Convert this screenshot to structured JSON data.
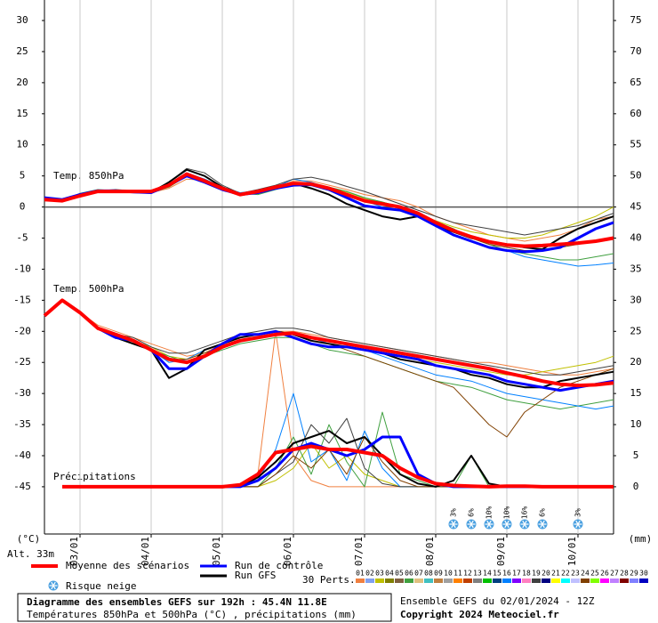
{
  "chart_data": {
    "type": "line",
    "title": "Diagramme des ensembles GEFS sur 192h : 45.4N 11.8E",
    "subtitle": "Températures 850hPa et 500hPa (°C) , précipitations (mm)",
    "run_info": "Ensemble GEFS du 02/01/2024 - 12Z",
    "copyright": "Copyright 2024 Meteociel.fr",
    "altitude": "Alt. 33m",
    "ylabel": "(°C)",
    "y2label": "(mm)",
    "panel_labels": [
      "Temp. 850hPa",
      "Temp. 500hPa",
      "Précipitations"
    ],
    "x": [
      0,
      6,
      12,
      18,
      24,
      30,
      36,
      42,
      48,
      54,
      60,
      66,
      72,
      78,
      84,
      90,
      96,
      102,
      108,
      114,
      120,
      126,
      132,
      138,
      144,
      150,
      156,
      162,
      168,
      174,
      180,
      186,
      192
    ],
    "xlim": [
      0,
      192
    ],
    "xticks": [
      {
        "value": 12,
        "label": "03/01"
      },
      {
        "value": 36,
        "label": "04/01"
      },
      {
        "value": 60,
        "label": "05/01"
      },
      {
        "value": 84,
        "label": "06/01"
      },
      {
        "value": 108,
        "label": "07/01"
      },
      {
        "value": 132,
        "label": "08/01"
      },
      {
        "value": 156,
        "label": "09/01"
      },
      {
        "value": 180,
        "label": "10/01"
      }
    ],
    "ylim": [
      -52.6,
      33.3
    ],
    "yticks": [
      30,
      25,
      20,
      15,
      10,
      5,
      0,
      -5,
      -10,
      -15,
      -20,
      -25,
      -30,
      -35,
      -40,
      -45
    ],
    "y2lim": [
      -7.6,
      78.3
    ],
    "y2ticks": [
      75,
      70,
      65,
      60,
      55,
      50,
      45,
      40,
      35,
      30,
      25,
      20,
      15,
      10,
      5,
      0
    ],
    "series": [
      {
        "name": "Moyenne des scénarios",
        "color": "#ff0000",
        "t850": [
          1.2,
          1,
          1.8,
          2.5,
          2.5,
          2.5,
          2.5,
          3.5,
          5.3,
          4.2,
          3,
          2,
          2.5,
          3.2,
          3.8,
          3.7,
          3,
          2,
          1,
          0.5,
          0,
          -1,
          -2.5,
          -3.8,
          -4.8,
          -5.6,
          -6.1,
          -6.3,
          -6.2,
          -6,
          -5.8,
          -5.5,
          -5
        ],
        "t500": [
          -17.5,
          -15,
          -17,
          -19.5,
          -20.5,
          -21.5,
          -23,
          -24.5,
          -25,
          -24,
          -22.5,
          -21.5,
          -21,
          -20.5,
          -20.3,
          -21,
          -21.5,
          -22,
          -22.5,
          -23,
          -23.5,
          -24,
          -24.5,
          -25,
          -25.5,
          -26,
          -26.7,
          -27.3,
          -28,
          -28.5,
          -28.7,
          -28.6,
          -28.3
        ],
        "precip": [
          null,
          0,
          0,
          0,
          0,
          0,
          0,
          0,
          0,
          0,
          0,
          0.3,
          2,
          5.5,
          6,
          6.5,
          6,
          6,
          5.5,
          5,
          3,
          1.5,
          0.5,
          0.2,
          0.1,
          0,
          0.1,
          0.1,
          0,
          0,
          0,
          0,
          0
        ]
      },
      {
        "name": "Run de contrôle",
        "color": "#0000ff",
        "t850": [
          1.5,
          1.2,
          2,
          2.6,
          2.6,
          2.4,
          2.3,
          3.5,
          5,
          4,
          2.8,
          2,
          2.3,
          3,
          3.5,
          3.6,
          2.8,
          1.5,
          0.2,
          -0.2,
          -0.5,
          -1.5,
          -3,
          -4.5,
          -5.5,
          -6.5,
          -7,
          -7.2,
          -7,
          -6.5,
          -5,
          -3.5,
          -2.5
        ],
        "t500": [
          -17.5,
          -15,
          -17,
          -19.5,
          -21,
          -21.5,
          -23,
          -26,
          -26,
          -24,
          -22,
          -20.5,
          -20.5,
          -20,
          -21,
          -22,
          -22.5,
          -22.5,
          -23,
          -23.5,
          -24,
          -24.5,
          -25.5,
          -26,
          -26.5,
          -27,
          -28,
          -28.5,
          -29,
          -29.5,
          -29,
          -28.5,
          -28
        ],
        "precip": [
          null,
          0,
          0,
          0,
          0,
          0,
          0,
          0,
          0,
          0,
          0,
          0,
          1,
          3,
          6,
          7,
          6,
          5,
          6,
          8,
          8,
          2,
          0.5,
          0,
          0,
          0,
          0,
          0,
          0,
          0,
          0,
          0,
          0
        ]
      },
      {
        "name": "Run GFS",
        "color": "#000000",
        "t850": [
          1.5,
          1.2,
          2,
          2.6,
          2.6,
          2.5,
          2.3,
          4,
          6,
          5,
          3.2,
          2,
          2.5,
          3.3,
          3.8,
          3,
          2,
          0.5,
          -0.5,
          -1.5,
          -2,
          -1.5,
          -3,
          -4,
          -5,
          -5.5,
          -6,
          -6.5,
          -6.8,
          -5,
          -3.5,
          -2.5,
          -1.5
        ],
        "t500": [
          -17.5,
          -15,
          -17,
          -19.5,
          -21,
          -22,
          -23,
          -27.5,
          -26,
          -23,
          -22,
          -21,
          -20.5,
          -20,
          -20.5,
          -21.5,
          -22,
          -22.5,
          -23,
          -23.5,
          -24.5,
          -25,
          -25.5,
          -26,
          -27,
          -27.5,
          -28.5,
          -29,
          -29,
          -28,
          -27.5,
          -27,
          -26.5
        ],
        "precip": [
          null,
          0,
          0,
          0,
          0,
          0,
          0,
          0,
          0,
          0,
          0,
          0,
          1.5,
          4,
          7,
          8,
          9,
          7,
          8,
          5,
          2,
          0.5,
          0,
          1,
          5,
          0.5,
          0,
          0,
          0,
          0,
          0,
          0,
          0
        ]
      }
    ],
    "perturbations": {
      "label": "30 Perts.",
      "members": [
        {
          "name": "01",
          "color": "#f08040",
          "t850": [
            1,
            1,
            2,
            2.5,
            2.5,
            2.5,
            2.3,
            3,
            4.5,
            4.3,
            3,
            1.8,
            2.5,
            3.2,
            4.2,
            4.2,
            3.5,
            2.8,
            2,
            1.5,
            1,
            0,
            -1.5,
            -2.5,
            -3.5,
            -4.5,
            -5,
            -5.5,
            -5,
            -4.5,
            -3.5,
            -2,
            -1.5
          ],
          "t500": [
            -17.5,
            -15,
            -17,
            -19,
            -20,
            -21,
            -22,
            -23,
            -24,
            -23.5,
            -22,
            -21,
            -20.5,
            -20,
            -20,
            -20.5,
            -21,
            -21.5,
            -22,
            -22.5,
            -23,
            -23.5,
            -24,
            -24.5,
            -25,
            -25,
            -25.5,
            -26,
            -26.5,
            -27,
            -27,
            -26.5,
            -26
          ],
          "precip": [
            null,
            0,
            0,
            0,
            0,
            0,
            0,
            0,
            0,
            0,
            0,
            0,
            2,
            25,
            5,
            1,
            0,
            0,
            0,
            0,
            0,
            0,
            0,
            0,
            0,
            0,
            0,
            0,
            0,
            0,
            0,
            0,
            0
          ]
        },
        {
          "name": "02",
          "color": "#80a0f0"
        },
        {
          "name": "03",
          "color": "#c0c000",
          "t850": [
            1.3,
            1.1,
            2,
            2.5,
            2.5,
            2.5,
            2.4,
            3.2,
            5,
            4.2,
            3,
            2,
            2.5,
            3,
            3.8,
            3.8,
            3.2,
            2.4,
            1.4,
            0.8,
            0,
            -1,
            -2.2,
            -3.2,
            -4,
            -4.5,
            -5,
            -5,
            -4.5,
            -3.5,
            -2.5,
            -1.5,
            0
          ],
          "t500": [
            -17.5,
            -15,
            -17,
            -19.5,
            -20.5,
            -21.5,
            -22.5,
            -24,
            -24.5,
            -23.5,
            -22.5,
            -21.5,
            -21,
            -20.5,
            -20.5,
            -21,
            -22,
            -22.5,
            -23,
            -23.5,
            -24,
            -24.5,
            -25,
            -25.5,
            -26,
            -26.5,
            -27,
            -27,
            -26.5,
            -26,
            -25.5,
            -25,
            -24
          ],
          "precip": [
            null,
            0,
            0,
            0,
            0,
            0,
            0,
            0,
            0,
            0,
            0,
            0,
            0,
            1,
            3,
            7,
            3,
            5,
            2,
            1,
            0,
            0,
            0,
            0,
            0,
            0,
            0,
            0,
            0,
            0,
            0,
            0,
            0
          ]
        },
        {
          "name": "04",
          "color": "#808000"
        },
        {
          "name": "05",
          "color": "#806040"
        },
        {
          "name": "06",
          "color": "#40a040",
          "t850": [
            1.3,
            1,
            2.2,
            2.8,
            2.6,
            2.4,
            2.3,
            3.2,
            5,
            4.5,
            3.2,
            2.2,
            2,
            2.8,
            3.6,
            3.8,
            3.2,
            2.5,
            1.5,
            0.8,
            0,
            -1,
            -2.3,
            -3.5,
            -5,
            -6,
            -7,
            -7.5,
            -8,
            -8.5,
            -8.5,
            -8,
            -7.5
          ],
          "t500": [
            -17.5,
            -15,
            -17,
            -19.5,
            -20.5,
            -21.5,
            -23,
            -24,
            -25,
            -24,
            -23,
            -22,
            -21.5,
            -21,
            -21,
            -22,
            -23,
            -23.5,
            -24,
            -25,
            -26,
            -27,
            -28,
            -28.5,
            -29,
            -30,
            -31,
            -31.5,
            -32,
            -32.5,
            -32,
            -31.5,
            -31
          ],
          "precip": [
            null,
            0,
            0,
            0,
            0,
            0,
            0,
            0,
            0,
            0,
            0,
            0,
            0,
            3,
            8,
            2,
            10,
            4,
            0,
            12,
            2,
            1,
            0,
            0,
            5,
            0,
            0,
            0,
            0,
            0,
            0,
            0,
            0
          ]
        },
        {
          "name": "07",
          "color": "#e0c080"
        },
        {
          "name": "08",
          "color": "#40c0c0"
        },
        {
          "name": "09",
          "color": "#c08040"
        },
        {
          "name": "10",
          "color": "#a0a0a0"
        },
        {
          "name": "11",
          "color": "#ff8000"
        },
        {
          "name": "12",
          "color": "#c04000"
        },
        {
          "name": "13",
          "color": "#808080"
        },
        {
          "name": "14",
          "color": "#00c000"
        },
        {
          "name": "15",
          "color": "#004080"
        },
        {
          "name": "16",
          "color": "#0080ff",
          "t850": [
            1.2,
            1,
            1.8,
            2.4,
            2.4,
            2.3,
            2.2,
            3.6,
            5.5,
            4.5,
            3.2,
            2.3,
            2.6,
            3.2,
            4.5,
            4,
            3,
            2,
            1,
            0,
            -0.5,
            -1.5,
            -3,
            -4.5,
            -5.5,
            -6.5,
            -7,
            -8,
            -8.5,
            -9,
            -9.5,
            -9.3,
            -9
          ],
          "t500": [
            -17.5,
            -15,
            -17,
            -19.5,
            -21,
            -22,
            -23,
            -25,
            -24.5,
            -23,
            -22,
            -21,
            -20.5,
            -20,
            -20.5,
            -21,
            -22,
            -22.5,
            -23,
            -24,
            -25,
            -26,
            -27,
            -27.5,
            -28,
            -29,
            -30,
            -30.5,
            -31,
            -31.5,
            -32,
            -32.5,
            -32
          ],
          "precip": [
            null,
            0,
            0,
            0,
            0,
            0,
            0,
            0,
            0,
            0,
            0,
            0,
            1,
            6,
            15,
            4,
            6,
            1,
            9,
            3,
            0,
            0,
            0,
            0,
            0,
            0,
            0,
            0,
            0,
            0,
            0,
            0,
            0
          ]
        },
        {
          "name": "17",
          "color": "#8000ff"
        },
        {
          "name": "18",
          "color": "#ff80c0"
        },
        {
          "name": "19",
          "color": "#404040",
          "t850": [
            1.5,
            1.2,
            2,
            2.6,
            2.8,
            2.6,
            2.5,
            4,
            6.2,
            5.5,
            3.5,
            2.2,
            2.8,
            3.5,
            4.5,
            4.8,
            4.2,
            3.3,
            2.5,
            1.5,
            0.5,
            -0.5,
            -1.5,
            -2.5,
            -3,
            -3.5,
            -4,
            -4.5,
            -4,
            -3.5,
            -3,
            -2,
            -1
          ],
          "t500": [
            -17.5,
            -15,
            -17,
            -19.5,
            -20.5,
            -21,
            -22.5,
            -23.5,
            -23.5,
            -22.5,
            -21.5,
            -20.5,
            -20,
            -19.5,
            -19.5,
            -20,
            -21,
            -21.5,
            -22,
            -22.5,
            -23,
            -23.5,
            -24,
            -24.5,
            -25,
            -25.5,
            -26,
            -26.5,
            -27,
            -27,
            -26.5,
            -26,
            -25.5
          ],
          "precip": [
            null,
            0,
            0,
            0,
            0,
            0,
            0,
            0,
            0,
            0,
            0,
            0,
            0,
            2,
            4,
            10,
            7,
            11,
            3,
            0.5,
            0,
            0,
            0,
            0,
            0,
            0,
            0,
            0,
            0,
            0,
            0,
            0,
            0
          ]
        },
        {
          "name": "20",
          "color": "#000080"
        },
        {
          "name": "21",
          "color": "#ffff00"
        },
        {
          "name": "22",
          "color": "#00ffff"
        },
        {
          "name": "23",
          "color": "#c0c0ff"
        },
        {
          "name": "24",
          "color": "#804000",
          "t850": [
            1.2,
            1,
            2,
            2.5,
            2.5,
            2.5,
            2.4,
            3.4,
            5.2,
            4.3,
            3.1,
            2.1,
            2.4,
            3.1,
            3.8,
            3.7,
            3,
            2.2,
            1.2,
            0.5,
            -0.3,
            -1.2,
            -2.8,
            -4,
            -5,
            -6,
            -6.5,
            -7,
            -7,
            -6.5,
            -6,
            -5.5,
            -5
          ],
          "t500": [
            -17.5,
            -15,
            -17,
            -19.5,
            -20.5,
            -21.5,
            -23,
            -24.5,
            -24.5,
            -23.5,
            -22.5,
            -21.5,
            -21,
            -20.5,
            -20.5,
            -21.5,
            -22,
            -23,
            -24,
            -25,
            -26,
            -27,
            -28,
            -29,
            -32,
            -35,
            -37,
            -33,
            -31,
            -29,
            -28,
            -27,
            -26
          ],
          "precip": [
            null,
            0,
            0,
            0,
            0,
            0,
            0,
            0,
            0,
            0,
            0,
            0,
            0,
            2,
            5,
            3,
            6,
            2,
            8,
            4,
            1,
            0,
            0,
            0,
            0,
            0,
            0,
            0,
            0,
            0,
            0,
            0,
            0
          ]
        },
        {
          "name": "25",
          "color": "#80ff00"
        },
        {
          "name": "26",
          "color": "#ff00ff"
        },
        {
          "name": "27",
          "color": "#c080ff"
        },
        {
          "name": "28",
          "color": "#800000"
        },
        {
          "name": "29",
          "color": "#8080ff"
        },
        {
          "name": "30",
          "color": "#0000c0"
        }
      ]
    },
    "snow_risk": {
      "label": "Risque neige",
      "color": "#4aa0e0",
      "x": [
        138,
        144,
        150,
        156,
        162,
        168,
        180
      ],
      "values": [
        3,
        6,
        10,
        10,
        16,
        6,
        3
      ],
      "value_labels": [
        "3%",
        "6%",
        "10%",
        "10%",
        "16%",
        "6%",
        "3%"
      ]
    }
  }
}
